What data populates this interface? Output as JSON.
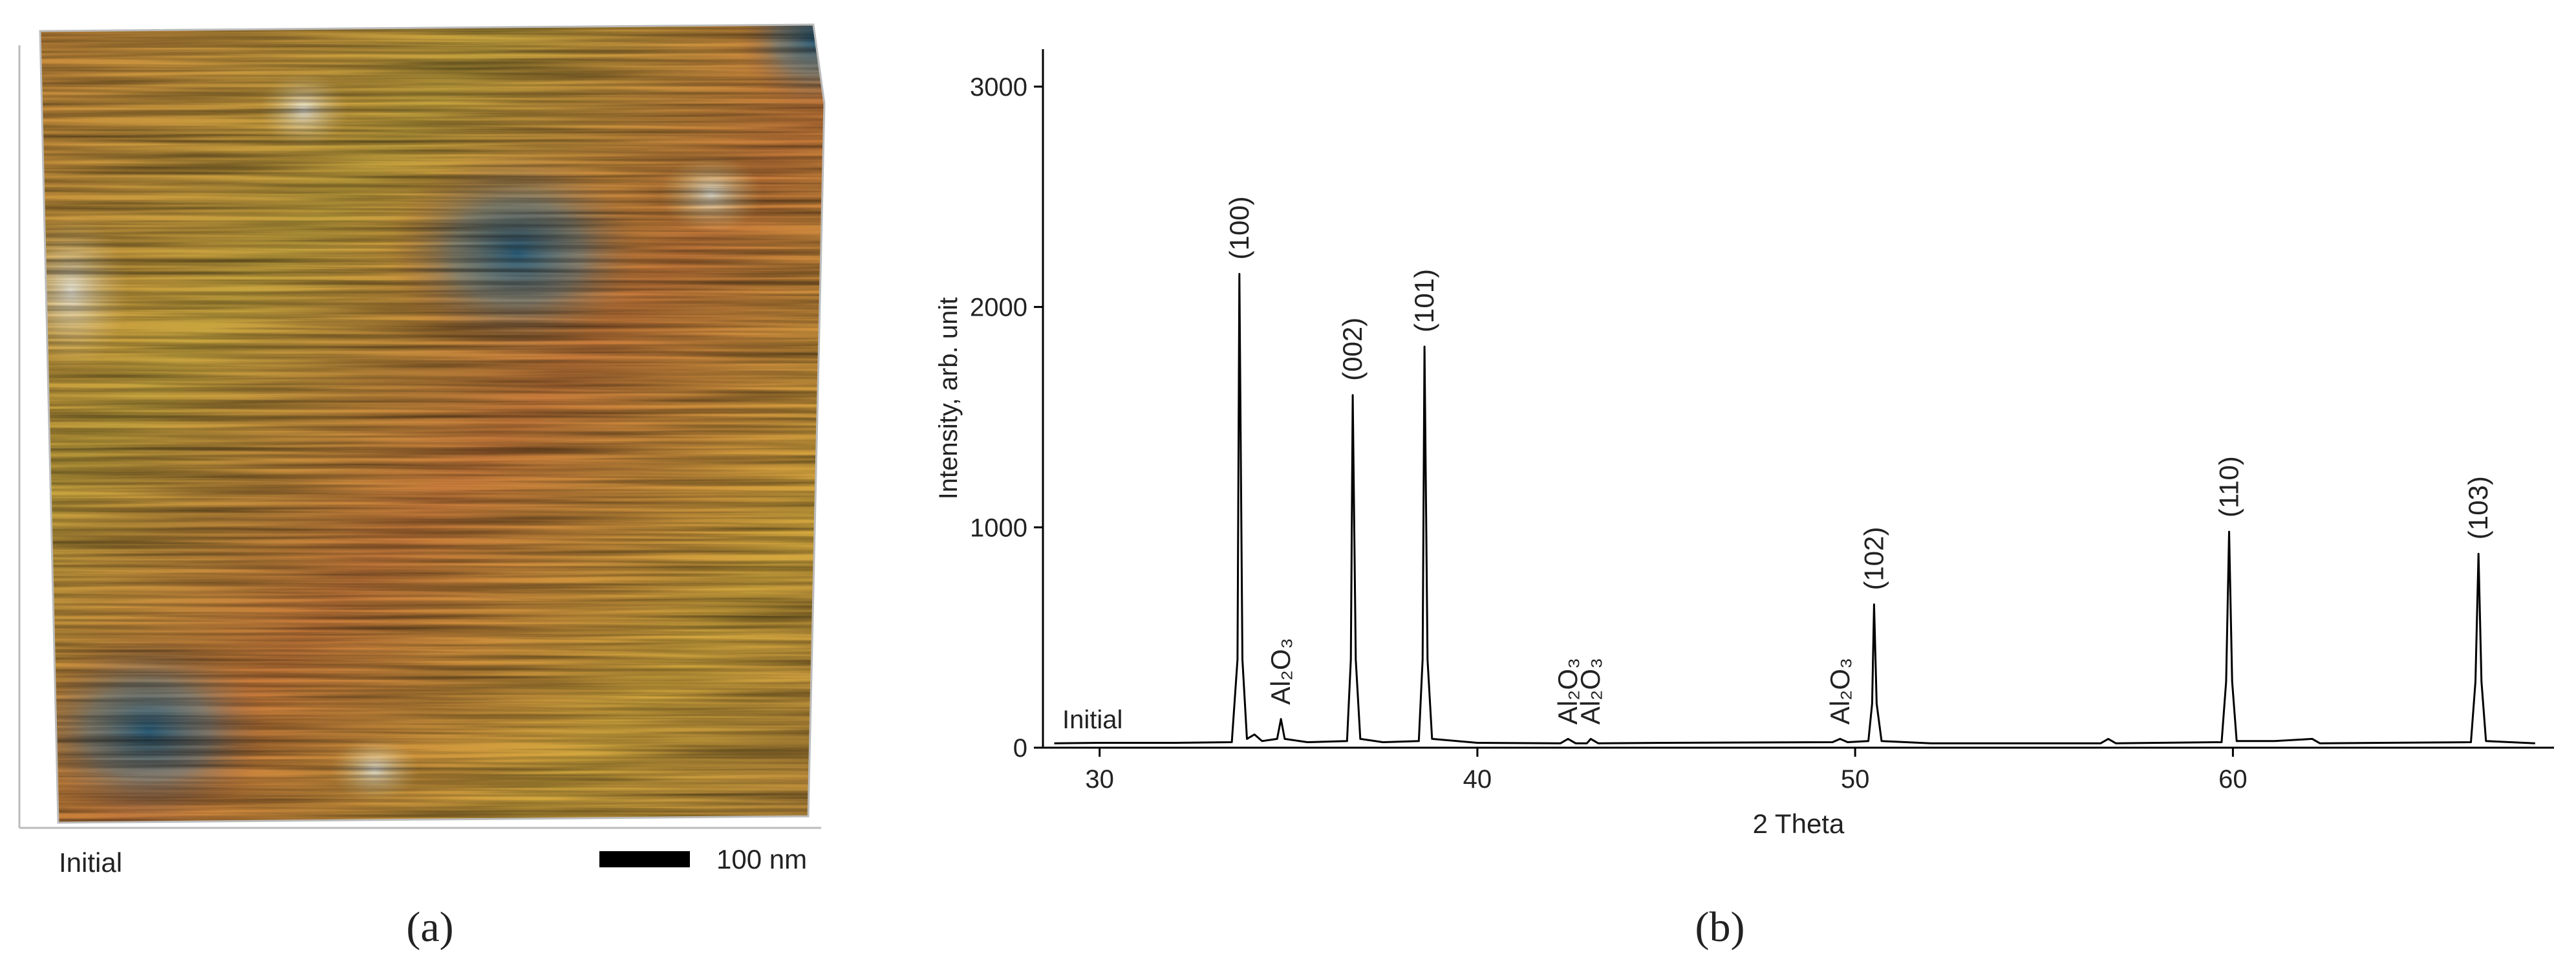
{
  "panel_a": {
    "label": "Initial",
    "scale_bar": "100 nm",
    "caption": "(a)"
  },
  "chart_data": {
    "type": "line",
    "caption": "(b)",
    "xlabel": "2 Theta",
    "ylabel": "Intensity, arb. unit",
    "xlim": [
      28.5,
      68.5
    ],
    "xticks": [
      30,
      40,
      50,
      60
    ],
    "ylim": [
      0,
      3170
    ],
    "yticks": [
      0,
      1000,
      2000,
      3000
    ],
    "x": [
      28.8,
      30,
      32,
      33.5,
      33.65,
      33.7,
      33.78,
      33.9,
      34.1,
      34.3,
      34.7,
      34.8,
      34.9,
      35.5,
      36.55,
      36.65,
      36.7,
      36.78,
      36.9,
      37.5,
      38.45,
      38.55,
      38.6,
      38.68,
      38.8,
      40,
      42.2,
      42.4,
      42.6,
      42.9,
      43,
      43.2,
      45,
      49.4,
      49.6,
      49.8,
      50.35,
      50.45,
      50.5,
      50.57,
      50.7,
      52,
      56.5,
      56.7,
      56.9,
      59.7,
      59.82,
      59.9,
      59.98,
      60.1,
      61.1,
      62.1,
      62.3,
      66.3,
      66.42,
      66.5,
      66.58,
      66.7,
      68
    ],
    "series": [
      {
        "name": "Initial",
        "color": "#000000",
        "values": [
          20,
          22,
          22,
          25,
          400,
          2150,
          400,
          40,
          60,
          30,
          40,
          130,
          40,
          25,
          30,
          400,
          1600,
          400,
          40,
          25,
          30,
          400,
          1820,
          400,
          40,
          22,
          20,
          40,
          20,
          20,
          40,
          20,
          22,
          25,
          40,
          25,
          30,
          200,
          650,
          200,
          30,
          20,
          20,
          40,
          20,
          25,
          300,
          980,
          300,
          30,
          30,
          40,
          20,
          25,
          300,
          880,
          300,
          30,
          20
        ]
      }
    ],
    "annotations": [
      {
        "text": "(100)",
        "x": 33.7
      },
      {
        "text": "Al₂O₃",
        "x": 34.8
      },
      {
        "text": "(002)",
        "x": 36.7
      },
      {
        "text": "(101)",
        "x": 38.6
      },
      {
        "text": "Al₂O₃",
        "x": 42.4
      },
      {
        "text": "Al₂O₃",
        "x": 43.0
      },
      {
        "text": "Al₂O₃",
        "x": 49.6
      },
      {
        "text": "(102)",
        "x": 50.5
      },
      {
        "text": "(110)",
        "x": 59.9
      },
      {
        "text": "(103)",
        "x": 66.5
      }
    ]
  }
}
